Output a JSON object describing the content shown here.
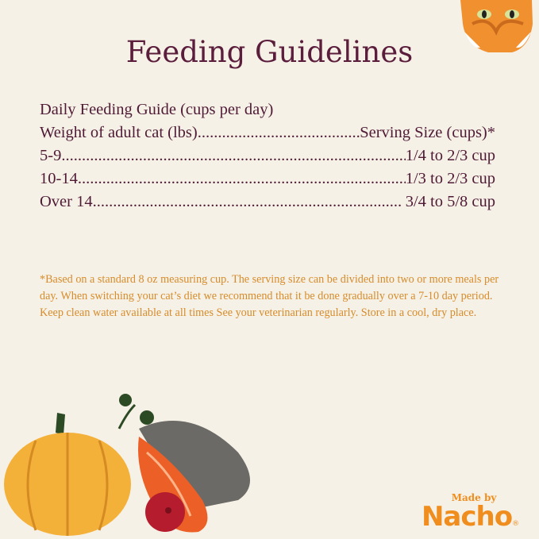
{
  "title": "Feeding Guidelines",
  "guide": {
    "heading": "Daily Feeding Guide (cups per day)",
    "header": {
      "left": "Weight of adult cat (lbs)",
      "right": "Serving Size (cups)*"
    },
    "rows": [
      {
        "weight": "5-9",
        "serving": "1/4 to 2/3 cup"
      },
      {
        "weight": "10-14",
        "serving": "1/3 to 2/3 cup"
      },
      {
        "weight": "Over 14",
        "serving": " 3/4 to 5/8 cup"
      }
    ]
  },
  "footnote": "*Based on a standard 8 oz measuring cup. The serving size can be divided into two or more meals per day. When switching your cat’s diet we recommend that it be done gradually over a 7-10 day period. Keep clean water available at all times See your veterinarian regularly. Store in a cool, dry place.",
  "logo": {
    "made_by": "Made by",
    "brand": "Nacho",
    "registered": "®"
  },
  "illustrations": [
    "cat-face",
    "pumpkin",
    "salmon",
    "cranberry",
    "parsley"
  ],
  "colors": {
    "background": "#f6f1e6",
    "title": "#5a1d3c",
    "footnote": "#d78c2c",
    "brand": "#ef8e1f"
  }
}
